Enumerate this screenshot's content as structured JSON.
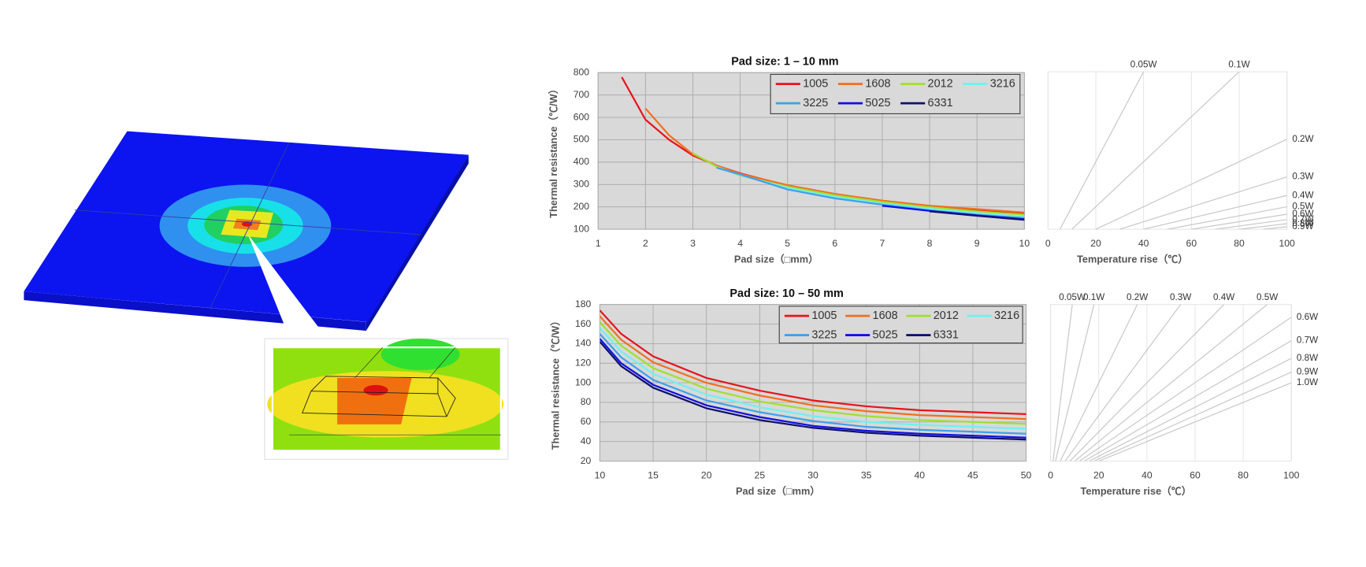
{
  "chart_data": [
    {
      "type": "line",
      "title": "Pad size: 1 – 10 mm",
      "xlabel": "Pad size（□mm）",
      "ylabel": "Thermal resistance（℃/W）",
      "x": [
        1.5,
        2,
        2.5,
        3,
        3.5,
        4,
        5,
        6,
        7,
        8,
        9,
        10
      ],
      "xlim": [
        1,
        10
      ],
      "xticks": [
        1,
        2,
        3,
        4,
        5,
        6,
        7,
        8,
        9,
        10
      ],
      "ylim": [
        100,
        800
      ],
      "yticks": [
        100,
        200,
        300,
        400,
        500,
        600,
        700,
        800
      ],
      "grid": true,
      "legend": "upper right",
      "series": [
        {
          "name": "1005",
          "color": "#e8141c",
          "values": [
            780,
            590,
            500,
            430,
            385,
            350,
            295,
            255,
            225,
            200,
            185,
            170
          ]
        },
        {
          "name": "1608",
          "color": "#f07020",
          "values": [
            null,
            640,
            520,
            435,
            385,
            348,
            297,
            258,
            228,
            205,
            190,
            175
          ]
        },
        {
          "name": "2012",
          "color": "#a0e030",
          "values": [
            null,
            null,
            null,
            440,
            380,
            340,
            290,
            252,
            222,
            198,
            180,
            165
          ]
        },
        {
          "name": "3216",
          "color": "#70f0f0",
          "values": [
            null,
            null,
            null,
            null,
            378,
            342,
            285,
            245,
            215,
            192,
            172,
            155
          ]
        },
        {
          "name": "3225",
          "color": "#40a0e8",
          "values": [
            null,
            null,
            null,
            null,
            375,
            345,
            278,
            238,
            210,
            185,
            165,
            150
          ]
        },
        {
          "name": "5025",
          "color": "#1010e0",
          "values": [
            null,
            null,
            null,
            null,
            null,
            null,
            null,
            null,
            205,
            182,
            162,
            145
          ]
        },
        {
          "name": "6331",
          "color": "#101070",
          "values": [
            null,
            null,
            null,
            null,
            null,
            null,
            null,
            null,
            null,
            180,
            160,
            142
          ]
        }
      ]
    },
    {
      "type": "line",
      "xlabel": "Temperature rise（℃）",
      "xlim": [
        0,
        100
      ],
      "xticks": [
        0,
        20,
        40,
        60,
        80,
        100
      ],
      "ylim": [
        100,
        800
      ],
      "grid": true,
      "legend": "none",
      "series": [
        {
          "name": "0.05W",
          "color": "#c8c8c8",
          "x": [
            5,
            40
          ],
          "values": [
            100,
            800
          ]
        },
        {
          "name": "0.1W",
          "color": "#c8c8c8",
          "x": [
            10,
            80
          ],
          "values": [
            100,
            800
          ]
        },
        {
          "name": "0.2W",
          "color": "#c8c8c8",
          "x": [
            20,
            100
          ],
          "values": [
            100,
            500
          ]
        },
        {
          "name": "0.3W",
          "color": "#c8c8c8",
          "x": [
            30,
            100
          ],
          "values": [
            100,
            333
          ]
        },
        {
          "name": "0.4W",
          "color": "#c8c8c8",
          "x": [
            40,
            100
          ],
          "values": [
            100,
            250
          ]
        },
        {
          "name": "0.5W",
          "color": "#c8c8c8",
          "x": [
            50,
            100
          ],
          "values": [
            100,
            200
          ]
        },
        {
          "name": "0.6W",
          "color": "#c8c8c8",
          "x": [
            60,
            100
          ],
          "values": [
            100,
            167
          ]
        },
        {
          "name": "0.7W",
          "color": "#c8c8c8",
          "x": [
            70,
            100
          ],
          "values": [
            100,
            143
          ]
        },
        {
          "name": "0.8W",
          "color": "#c8c8c8",
          "x": [
            80,
            100
          ],
          "values": [
            100,
            125
          ]
        },
        {
          "name": "0.9W",
          "color": "#c8c8c8",
          "x": [
            90,
            100
          ],
          "values": [
            100,
            111
          ]
        }
      ]
    },
    {
      "type": "line",
      "title": "Pad size: 10 – 50 mm",
      "xlabel": "Pad size（□mm）",
      "ylabel": "Thermal resistance（℃/W）",
      "x": [
        10,
        12,
        15,
        20,
        25,
        30,
        35,
        40,
        45,
        50
      ],
      "xlim": [
        10,
        50
      ],
      "xticks": [
        10,
        15,
        20,
        25,
        30,
        35,
        40,
        45,
        50
      ],
      "ylim": [
        20,
        180
      ],
      "yticks": [
        20,
        40,
        60,
        80,
        100,
        120,
        140,
        160,
        180
      ],
      "grid": true,
      "legend": "upper right",
      "series": [
        {
          "name": "1005",
          "color": "#e8141c",
          "values": [
            174,
            150,
            127,
            105,
            92,
            82,
            76,
            72,
            70,
            68
          ]
        },
        {
          "name": "1608",
          "color": "#f07020",
          "values": [
            168,
            144,
            121,
            100,
            87,
            77,
            71,
            67,
            65,
            63
          ]
        },
        {
          "name": "2012",
          "color": "#a0e030",
          "values": [
            162,
            138,
            115,
            94,
            81,
            72,
            66,
            62,
            60,
            58
          ]
        },
        {
          "name": "3216",
          "color": "#70f0f0",
          "values": [
            156,
            132,
            109,
            88,
            75,
            66,
            60,
            57,
            55,
            53
          ]
        },
        {
          "name": "3225",
          "color": "#40a0e8",
          "values": [
            150,
            126,
            103,
            82,
            70,
            61,
            55,
            52,
            50,
            48
          ]
        },
        {
          "name": "5025",
          "color": "#1010e0",
          "values": [
            145,
            120,
            98,
            77,
            65,
            56,
            51,
            48,
            46,
            44
          ]
        },
        {
          "name": "6331",
          "color": "#101070",
          "values": [
            142,
            117,
            95,
            74,
            62,
            54,
            49,
            46,
            44,
            42
          ]
        }
      ]
    },
    {
      "type": "line",
      "xlabel": "Temperature rise（℃）",
      "xlim": [
        0,
        100
      ],
      "xticks": [
        0,
        20,
        40,
        60,
        80,
        100
      ],
      "ylim": [
        20,
        180
      ],
      "grid": true,
      "legend": "none",
      "series": [
        {
          "name": "0.05W",
          "color": "#c8c8c8",
          "x": [
            1,
            9
          ],
          "values": [
            20,
            180
          ]
        },
        {
          "name": "0.1W",
          "color": "#c8c8c8",
          "x": [
            2,
            18
          ],
          "values": [
            20,
            180
          ]
        },
        {
          "name": "0.2W",
          "color": "#c8c8c8",
          "x": [
            4,
            36
          ],
          "values": [
            20,
            180
          ]
        },
        {
          "name": "0.3W",
          "color": "#c8c8c8",
          "x": [
            6,
            54
          ],
          "values": [
            20,
            180
          ]
        },
        {
          "name": "0.4W",
          "color": "#c8c8c8",
          "x": [
            8,
            72
          ],
          "values": [
            20,
            180
          ]
        },
        {
          "name": "0.5W",
          "color": "#c8c8c8",
          "x": [
            10,
            90
          ],
          "values": [
            20,
            180
          ]
        },
        {
          "name": "0.6W",
          "color": "#c8c8c8",
          "x": [
            12,
            100
          ],
          "values": [
            20,
            167
          ]
        },
        {
          "name": "0.7W",
          "color": "#c8c8c8",
          "x": [
            14,
            100
          ],
          "values": [
            20,
            143
          ]
        },
        {
          "name": "0.8W",
          "color": "#c8c8c8",
          "x": [
            16,
            100
          ],
          "values": [
            20,
            125
          ]
        },
        {
          "name": "0.9W",
          "color": "#c8c8c8",
          "x": [
            18,
            100
          ],
          "values": [
            20,
            111
          ]
        },
        {
          "name": "1.0W",
          "color": "#c8c8c8",
          "x": [
            20,
            100
          ],
          "values": [
            20,
            100
          ]
        }
      ]
    }
  ]
}
